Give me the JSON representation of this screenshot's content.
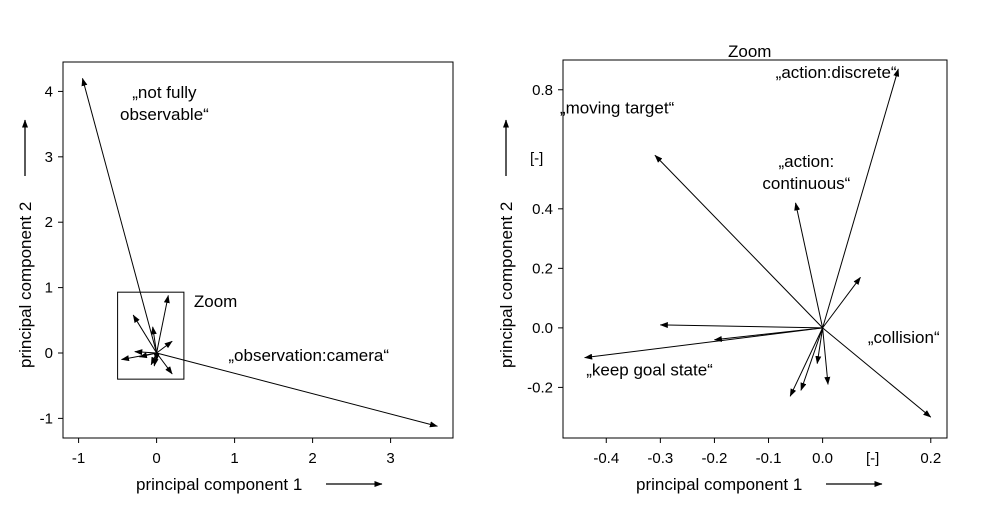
{
  "chart_data": [
    {
      "type": "biplot",
      "title": "",
      "xlabel": "principal component 1",
      "ylabel": "principal component 2",
      "xlim": [
        -1.2,
        3.8
      ],
      "ylim": [
        -1.3,
        4.45
      ],
      "xticks": [
        -1,
        0,
        1,
        2,
        3
      ],
      "yticks": [
        -1,
        0,
        1,
        2,
        3,
        4
      ],
      "grid": false,
      "vectors": [
        {
          "x": -0.95,
          "y": 4.2
        },
        {
          "x": 3.6,
          "y": -1.12
        },
        {
          "x": 0.15,
          "y": 0.88
        },
        {
          "x": -0.3,
          "y": 0.58
        },
        {
          "x": -0.05,
          "y": 0.4
        },
        {
          "x": 0.2,
          "y": 0.18
        },
        {
          "x": -0.28,
          "y": 0.02
        },
        {
          "x": -0.45,
          "y": -0.1
        },
        {
          "x": -0.22,
          "y": -0.06
        },
        {
          "x": -0.07,
          "y": -0.18
        },
        {
          "x": -0.03,
          "y": -0.2
        },
        {
          "x": 0.0,
          "y": -0.12
        },
        {
          "x": 0.2,
          "y": -0.32
        }
      ],
      "zoom_box": {
        "x0": -0.5,
        "x1": 0.35,
        "y0": -0.4,
        "y1": 0.93,
        "label": "Zoom"
      },
      "annotations": [
        {
          "lines": [
            "„not fully",
            "observable“"
          ],
          "x": 0.1,
          "y": 3.9
        },
        {
          "lines": [
            "„observation:camera“"
          ],
          "x": 1.95,
          "y": -0.12
        }
      ]
    },
    {
      "type": "biplot",
      "title": "Zoom",
      "xlabel": "principal component 1",
      "ylabel": "principal component 2",
      "unit_label": "[-]",
      "xlim": [
        -0.48,
        0.23
      ],
      "ylim": [
        -0.37,
        0.9
      ],
      "xticks": [
        -0.4,
        -0.3,
        -0.2,
        -0.1,
        0.0,
        0.2
      ],
      "xtick_labels": [
        "-0.4",
        "-0.3",
        "-0.2",
        "-0.1",
        "0.0",
        "0.2"
      ],
      "yticks": [
        -0.2,
        0.0,
        0.2,
        0.4,
        0.8
      ],
      "ytick_labels": [
        "-0.2",
        "0.0",
        "0.2",
        "0.4",
        "0.8"
      ],
      "grid": false,
      "vectors": [
        {
          "x": 0.14,
          "y": 0.87
        },
        {
          "x": -0.31,
          "y": 0.58
        },
        {
          "x": -0.05,
          "y": 0.42
        },
        {
          "x": 0.07,
          "y": 0.17
        },
        {
          "x": -0.3,
          "y": 0.01
        },
        {
          "x": -0.44,
          "y": -0.1
        },
        {
          "x": -0.2,
          "y": -0.04
        },
        {
          "x": -0.06,
          "y": -0.23
        },
        {
          "x": -0.04,
          "y": -0.21
        },
        {
          "x": 0.01,
          "y": -0.19
        },
        {
          "x": -0.01,
          "y": -0.12
        },
        {
          "x": 0.2,
          "y": -0.3
        }
      ],
      "annotations": [
        {
          "lines": [
            "„action:discrete“"
          ],
          "x": 0.025,
          "y": 0.84
        },
        {
          "lines": [
            "„moving target“"
          ],
          "x": -0.38,
          "y": 0.72
        },
        {
          "lines": [
            "„action:",
            "continuous“"
          ],
          "x": -0.03,
          "y": 0.54
        },
        {
          "lines": [
            "„collision“"
          ],
          "x": 0.15,
          "y": -0.05
        },
        {
          "lines": [
            "„keep goal state“"
          ],
          "x": -0.32,
          "y": -0.16
        }
      ]
    }
  ]
}
